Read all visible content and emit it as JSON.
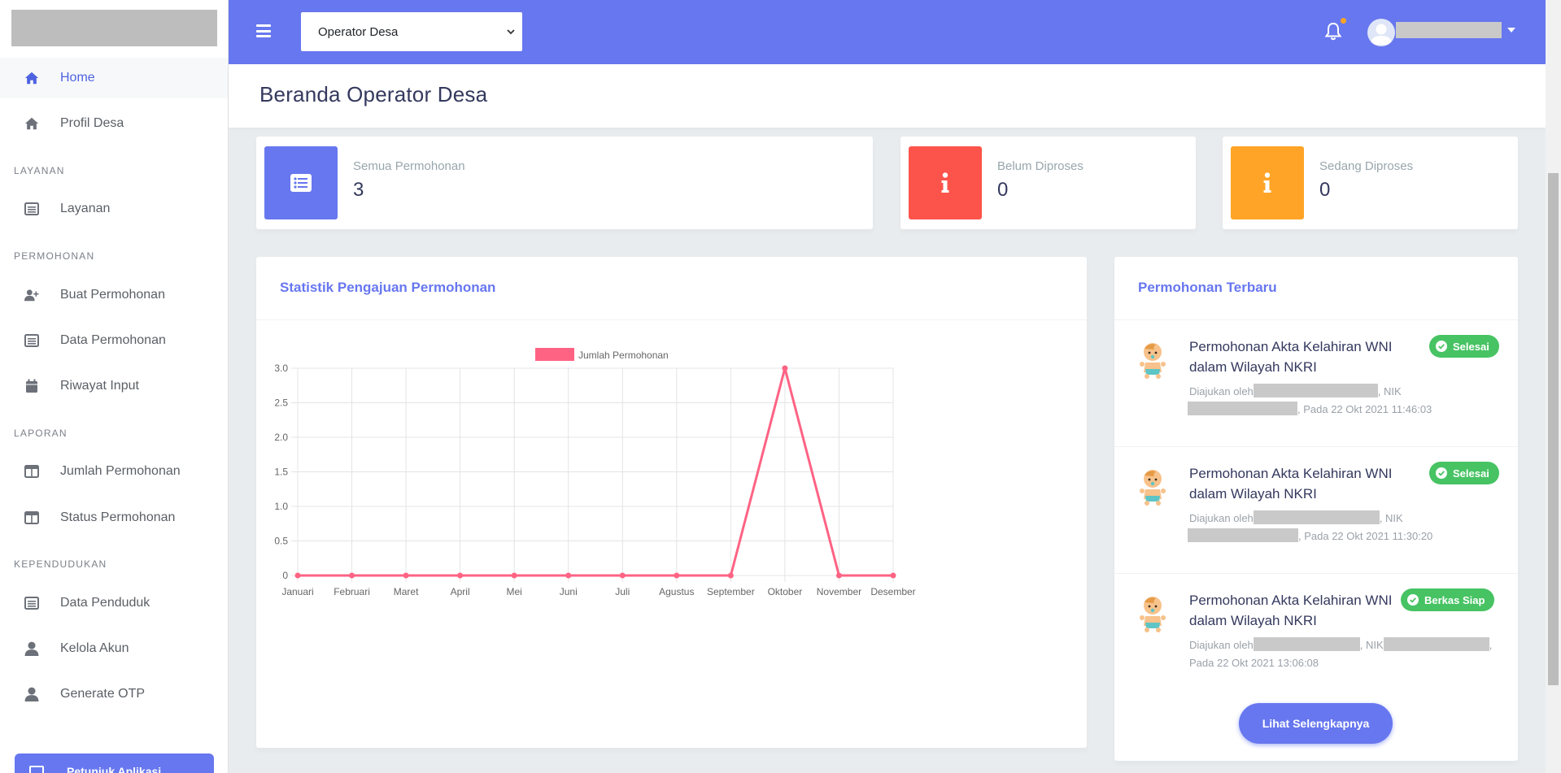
{
  "topbar": {
    "role_selected": "Operator Desa",
    "accent": "#6777ef"
  },
  "sidebar": {
    "items": [
      {
        "label": "Home",
        "icon": "home-icon",
        "active": true
      },
      {
        "label": "Profil Desa",
        "icon": "home-icon"
      },
      {
        "label": "Layanan",
        "icon": "list-alt-icon"
      },
      {
        "label": "Buat Permohonan",
        "icon": "user-plus-icon"
      },
      {
        "label": "Data Permohonan",
        "icon": "list-alt-icon"
      },
      {
        "label": "Riwayat Input",
        "icon": "calendar-icon"
      },
      {
        "label": "Jumlah Permohonan",
        "icon": "columns-icon"
      },
      {
        "label": "Status Permohonan",
        "icon": "columns-icon"
      },
      {
        "label": "Data Penduduk",
        "icon": "list-alt-icon"
      },
      {
        "label": "Kelola Akun",
        "icon": "user-icon"
      },
      {
        "label": "Generate OTP",
        "icon": "user-icon"
      }
    ],
    "sections": [
      "LAYANAN",
      "PERMOHONAN",
      "LAPORAN",
      "KEPENDUDUKAN"
    ],
    "guide_button": "Petunjuk Aplikasi"
  },
  "header": {
    "title": "Beranda Operator Desa"
  },
  "stats": [
    {
      "label": "Semua Permohonan",
      "value": "3",
      "color": "#6777ef",
      "icon": "list-icon"
    },
    {
      "label": "Belum Diproses",
      "value": "0",
      "color": "#fc544b",
      "icon": "info-icon"
    },
    {
      "label": "Sedang Diproses",
      "value": "0",
      "color": "#ffa426",
      "icon": "info-icon"
    }
  ],
  "chart_card": {
    "title": "Statistik Pengajuan Permohonan"
  },
  "chart_data": {
    "type": "line",
    "categories": [
      "Januari",
      "Februari",
      "Maret",
      "April",
      "Mei",
      "Juni",
      "Juli",
      "Agustus",
      "September",
      "Oktober",
      "November",
      "Desember"
    ],
    "series": [
      {
        "name": "Jumlah Permohonan",
        "values": [
          0,
          0,
          0,
          0,
          0,
          0,
          0,
          0,
          0,
          3,
          0,
          0
        ],
        "color": "#ff6384"
      }
    ],
    "ylim": [
      0,
      3
    ],
    "yticks": [
      "0",
      "0.5",
      "1.0",
      "1.5",
      "2.0",
      "2.5",
      "3.0"
    ],
    "grid": true,
    "legend": "top-center"
  },
  "recent": {
    "title": "Permohonan Terbaru",
    "items": [
      {
        "title": "Permohonan Akta Kelahiran WNI dalam Wilayah NKRI",
        "submitted_by": "Diajukan oleh",
        "nik": ", NIK",
        "date": ", Pada 22 Okt 2021 11:46:03",
        "status": "Selesai"
      },
      {
        "title": "Permohonan Akta Kelahiran WNI dalam Wilayah NKRI",
        "submitted_by": "Diajukan oleh",
        "nik": ", NIK",
        "date": ", Pada 22 Okt 2021 11:30:20",
        "status": "Selesai"
      },
      {
        "title": "Permohonan Akta Kelahiran WNI dalam Wilayah NKRI",
        "submitted_by": "Diajukan oleh",
        "nik": ", NIK",
        "date": "Pada 22 Okt 2021 13:06:08",
        "status": "Berkas Siap"
      }
    ],
    "more_button": "Lihat Selengkapnya"
  }
}
